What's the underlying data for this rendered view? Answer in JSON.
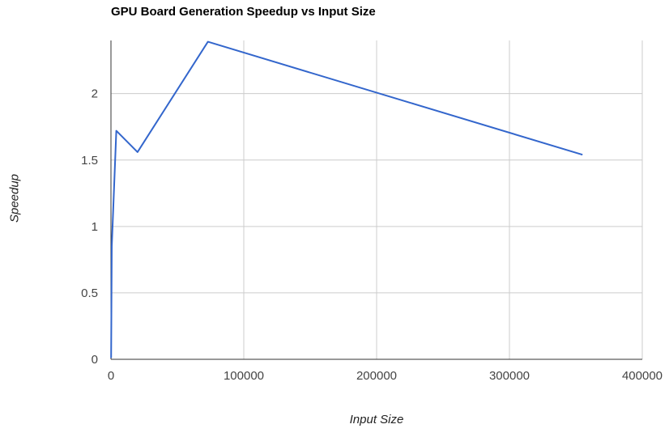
{
  "chart_data": {
    "type": "line",
    "title": "GPU Board Generation Speedup vs Input Size",
    "xlabel": "Input Size",
    "ylabel": "Speedup",
    "xlim": [
      0,
      400000
    ],
    "ylim": [
      0,
      2.4
    ],
    "x_ticks": [
      "0",
      "100000",
      "200000",
      "300000",
      "400000"
    ],
    "y_ticks": [
      "0",
      "0.5",
      "1",
      "1.5",
      "2"
    ],
    "x_tick_values": [
      0,
      100000,
      200000,
      300000,
      400000
    ],
    "y_tick_values": [
      0,
      0.5,
      1,
      1.5,
      2
    ],
    "grid": true,
    "legend": "none",
    "series": [
      {
        "color": "#3366cc",
        "points": [
          [
            100,
            0.01
          ],
          [
            600,
            0.85
          ],
          [
            4000,
            1.72
          ],
          [
            20000,
            1.56
          ],
          [
            73000,
            2.39
          ],
          [
            355000,
            1.54
          ]
        ]
      }
    ]
  }
}
